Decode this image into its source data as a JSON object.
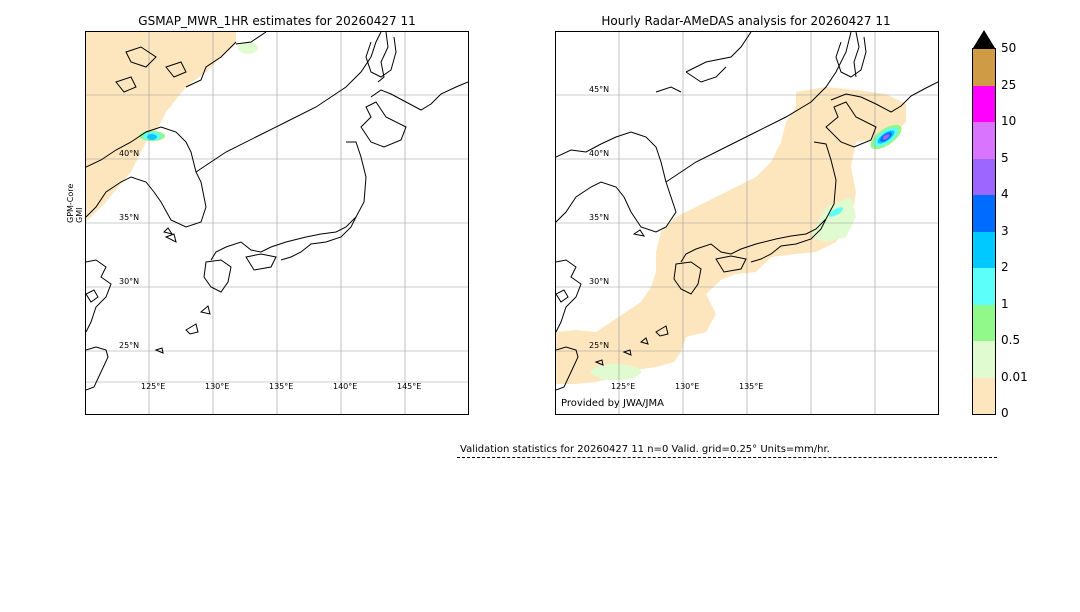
{
  "left_panel": {
    "title": "GSMAP_MWR_1HR estimates for 20260427 11",
    "side_label_line1": "GPM-Core",
    "side_label_line2": "GMI",
    "lat_labels": [
      "40°N",
      "35°N",
      "30°N",
      "25°N"
    ],
    "lon_labels": [
      "125°E",
      "130°E",
      "135°E",
      "140°E",
      "145°E"
    ]
  },
  "right_panel": {
    "title": "Hourly Radar-AMeDAS analysis for 20260427 11",
    "lat_labels": [
      "45°N",
      "40°N",
      "35°N",
      "30°N",
      "25°N"
    ],
    "lon_labels": [
      "125°E",
      "130°E",
      "135°E"
    ],
    "credit": "Provided by JWA/JMA"
  },
  "colorbar": {
    "ticks": [
      "0",
      "0.01",
      "0.5",
      "1",
      "2",
      "3",
      "4",
      "5",
      "10",
      "25",
      "50"
    ],
    "colors": [
      "#fde6bd",
      "#e0fbcf",
      "#91f98a",
      "#5dfffb",
      "#00c9ff",
      "#006bff",
      "#9c66ff",
      "#d874ff",
      "#ff00ff",
      "#cf9b45"
    ],
    "extend_color": "#000000"
  },
  "validation": {
    "text": "Validation statistics for 20260427 11  n=0 Valid. grid=0.25° Units=mm/hr."
  }
}
